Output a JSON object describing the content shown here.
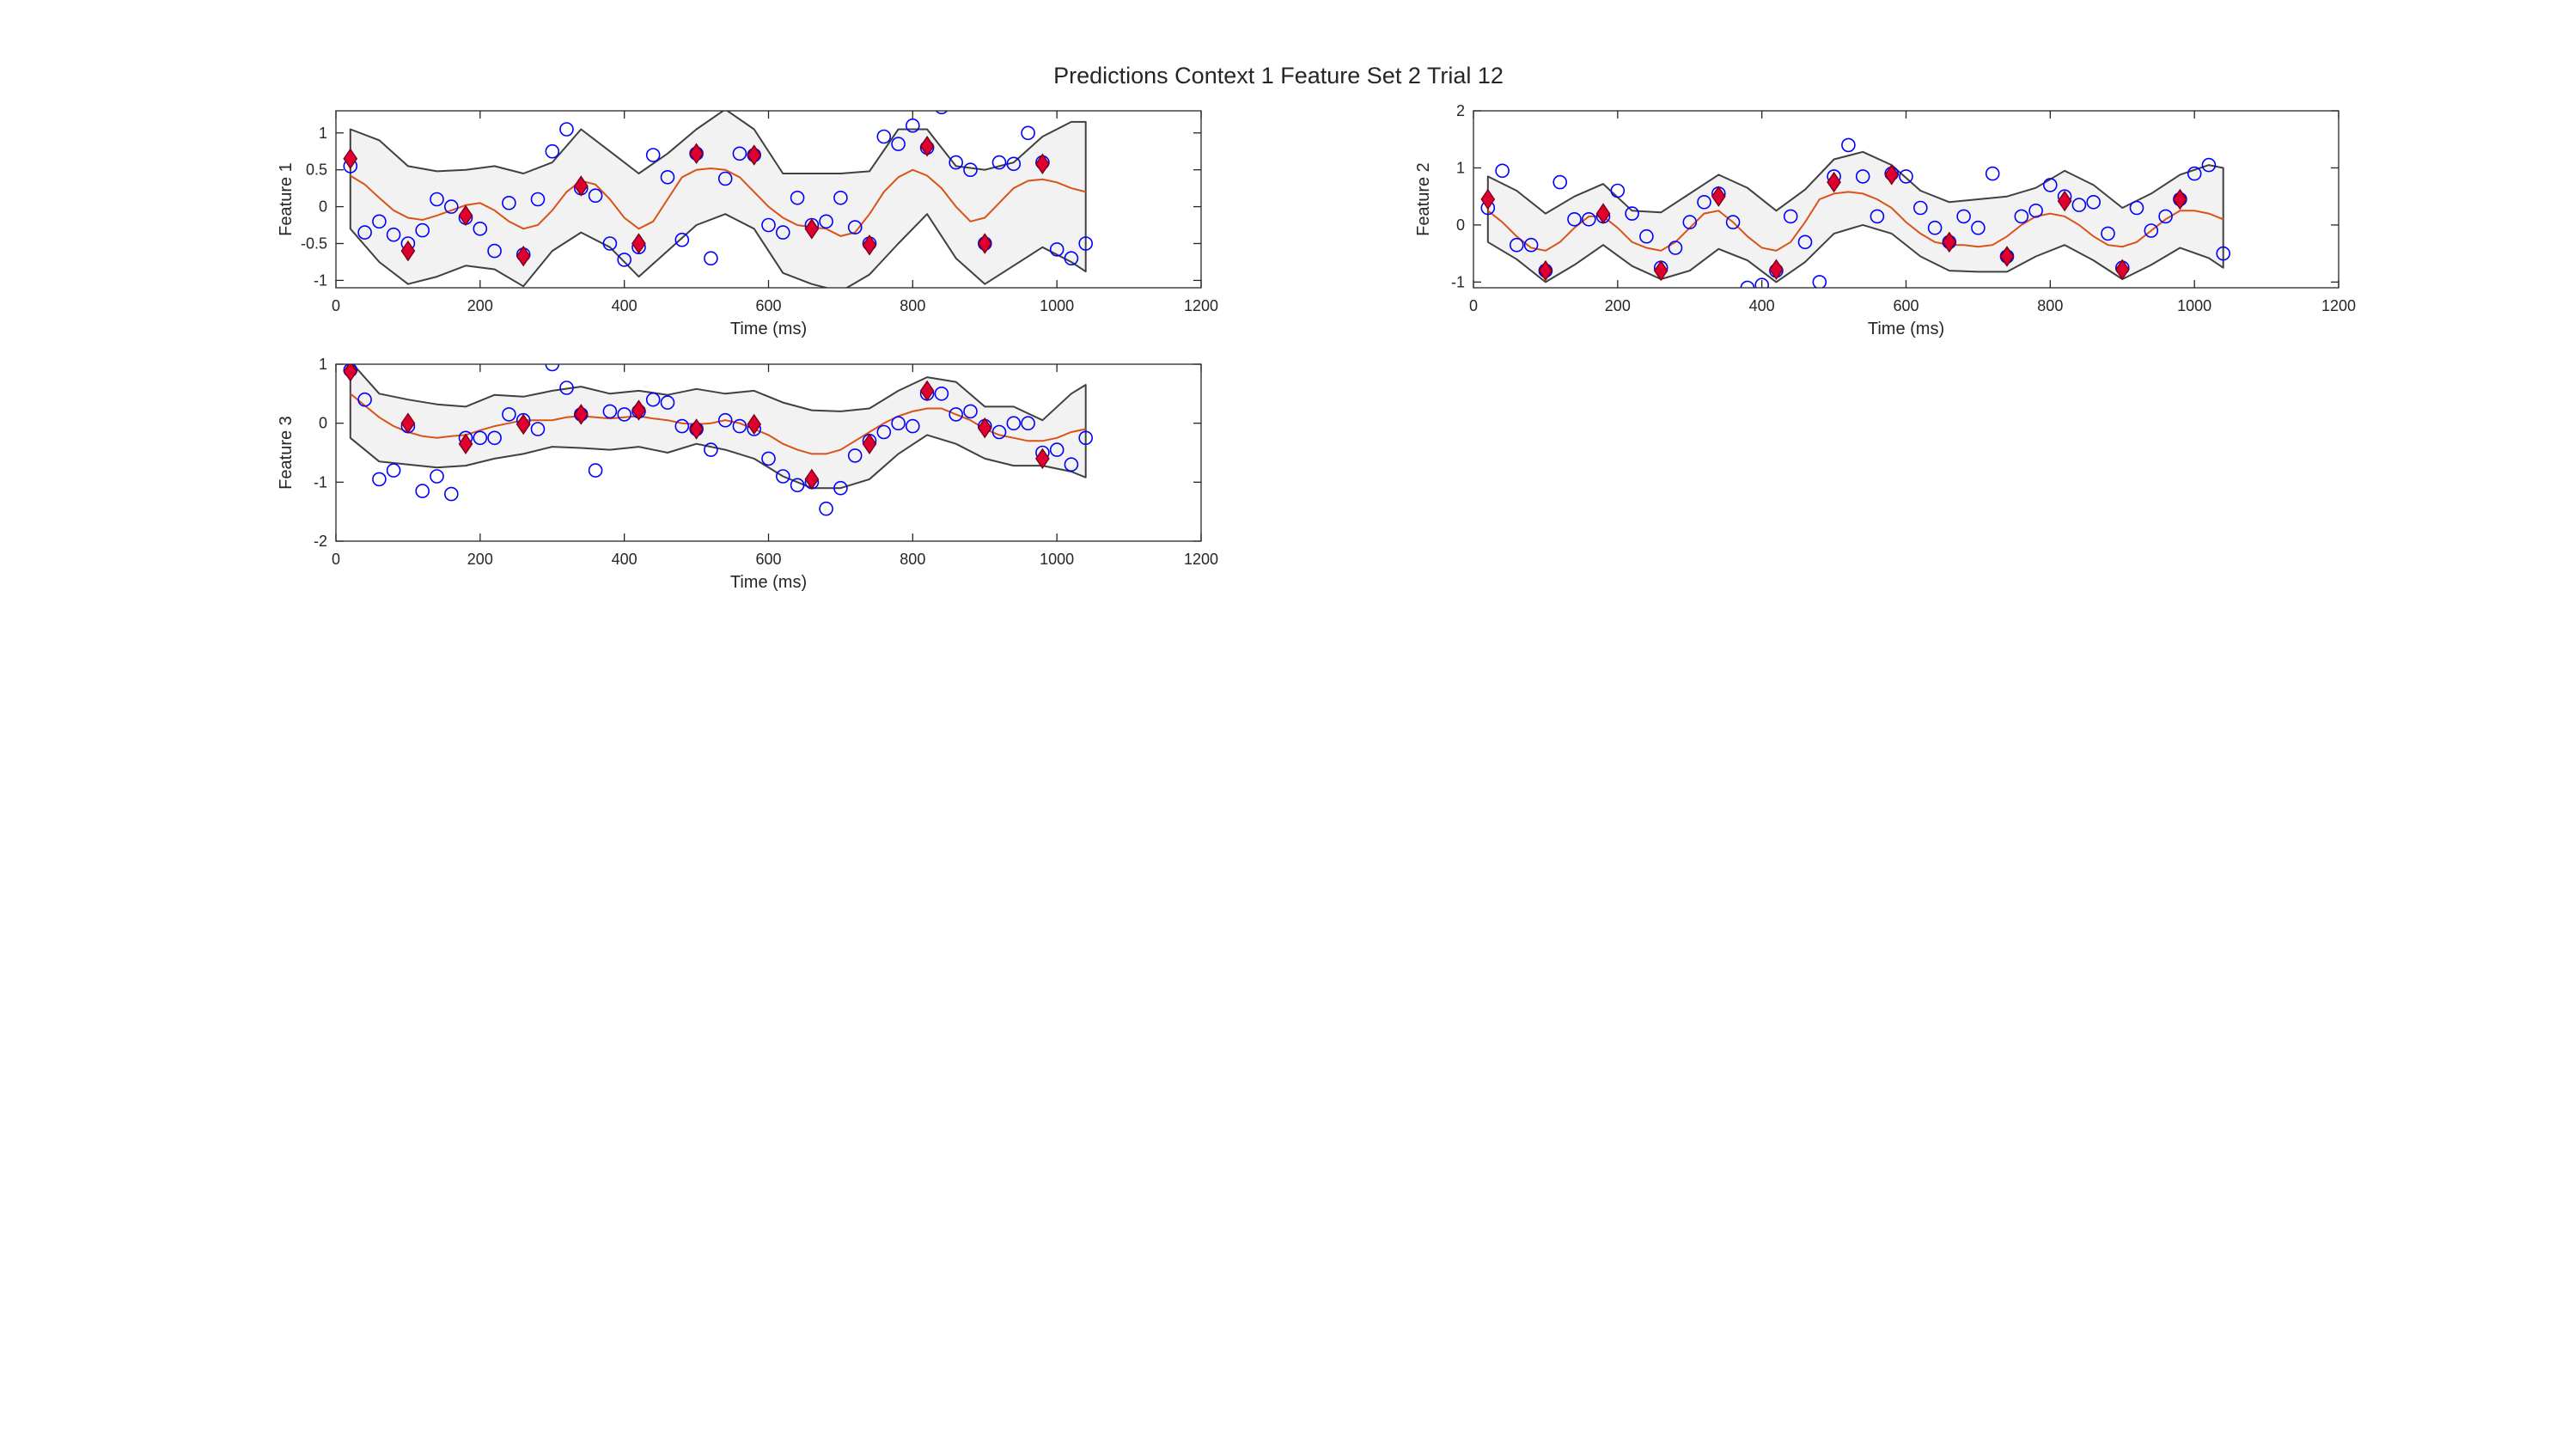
{
  "figure": {
    "title": "Predictions Context 1 Feature Set 2 Trial 12"
  },
  "chart_data": [
    {
      "type": "line",
      "ylabel": "Feature 1",
      "xlabel": "Time (ms)",
      "xlim": [
        0,
        1200
      ],
      "ylim": [
        -1.1,
        1.3
      ],
      "xticks": [
        0,
        200,
        400,
        600,
        800,
        1000,
        1200
      ],
      "yticks": [
        -1,
        -0.5,
        0,
        0.5,
        1
      ],
      "ytick_labels": [
        "-1",
        "-0.5",
        "0",
        "0.5",
        "1"
      ],
      "grid": false,
      "band": {
        "x": [
          20,
          60,
          100,
          140,
          180,
          220,
          260,
          300,
          340,
          380,
          420,
          460,
          500,
          540,
          580,
          620,
          660,
          700,
          740,
          780,
          820,
          860,
          900,
          940,
          980,
          1020,
          1040
        ],
        "upper": [
          1.05,
          0.9,
          0.55,
          0.48,
          0.5,
          0.55,
          0.45,
          0.6,
          1.05,
          0.75,
          0.45,
          0.72,
          1.05,
          1.32,
          1.05,
          0.45,
          0.45,
          0.45,
          0.48,
          1.05,
          1.05,
          0.55,
          0.5,
          0.6,
          0.95,
          1.15,
          1.15
        ],
        "lower": [
          -0.3,
          -0.75,
          -1.05,
          -0.95,
          -0.8,
          -0.85,
          -1.08,
          -0.6,
          -0.35,
          -0.55,
          -0.95,
          -0.6,
          -0.25,
          -0.1,
          -0.3,
          -0.9,
          -1.05,
          -1.15,
          -0.92,
          -0.5,
          -0.1,
          -0.7,
          -1.05,
          -0.8,
          -0.55,
          -0.75,
          -0.88
        ]
      },
      "mean": {
        "name": "",
        "x": [
          20,
          40,
          60,
          80,
          100,
          120,
          140,
          160,
          180,
          200,
          220,
          240,
          260,
          280,
          300,
          320,
          340,
          360,
          380,
          400,
          420,
          440,
          460,
          480,
          500,
          520,
          540,
          560,
          580,
          600,
          620,
          640,
          660,
          680,
          700,
          720,
          740,
          760,
          780,
          800,
          820,
          840,
          860,
          880,
          900,
          920,
          940,
          960,
          980,
          1000,
          1020,
          1040
        ],
        "y": [
          0.42,
          0.3,
          0.12,
          -0.05,
          -0.15,
          -0.18,
          -0.12,
          -0.05,
          0.02,
          0.05,
          -0.05,
          -0.2,
          -0.3,
          -0.25,
          -0.05,
          0.2,
          0.35,
          0.3,
          0.1,
          -0.15,
          -0.3,
          -0.2,
          0.1,
          0.4,
          0.5,
          0.52,
          0.5,
          0.4,
          0.2,
          0.0,
          -0.15,
          -0.25,
          -0.28,
          -0.3,
          -0.4,
          -0.35,
          -0.1,
          0.2,
          0.4,
          0.5,
          0.42,
          0.25,
          0.0,
          -0.2,
          -0.15,
          0.05,
          0.25,
          0.35,
          0.37,
          0.33,
          0.25,
          0.2
        ]
      },
      "observations": {
        "x": [
          20,
          40,
          60,
          80,
          100,
          120,
          140,
          160,
          180,
          200,
          220,
          240,
          260,
          280,
          300,
          320,
          340,
          360,
          380,
          400,
          420,
          440,
          460,
          480,
          500,
          520,
          540,
          560,
          580,
          600,
          620,
          640,
          660,
          680,
          700,
          720,
          740,
          760,
          780,
          800,
          820,
          840,
          860,
          880,
          900,
          920,
          940,
          960,
          980,
          1000,
          1020,
          1040
        ],
        "y": [
          0.55,
          -0.35,
          -0.2,
          -0.38,
          -0.5,
          -0.32,
          0.1,
          0.0,
          -0.15,
          -0.3,
          -0.6,
          0.05,
          -0.65,
          0.1,
          0.75,
          1.05,
          0.25,
          0.15,
          -0.5,
          -0.72,
          -0.55,
          0.7,
          0.4,
          -0.45,
          0.72,
          -0.7,
          0.38,
          0.72,
          0.7,
          -0.25,
          -0.35,
          0.12,
          -0.25,
          -0.2,
          0.12,
          -0.28,
          -0.5,
          0.95,
          0.85,
          1.1,
          0.8,
          1.35,
          0.6,
          0.5,
          -0.5,
          0.6,
          0.58,
          1.0,
          0.6,
          -0.58,
          -0.7,
          -0.5
        ]
      },
      "predictions": {
        "x": [
          20,
          100,
          180,
          260,
          340,
          420,
          500,
          580,
          660,
          740,
          820,
          900,
          980
        ],
        "y": [
          0.65,
          -0.6,
          -0.12,
          -0.67,
          0.28,
          -0.5,
          0.72,
          0.7,
          -0.3,
          -0.52,
          0.82,
          -0.5,
          0.58
        ]
      }
    },
    {
      "type": "line",
      "ylabel": "Feature 2",
      "xlabel": "Time (ms)",
      "xlim": [
        0,
        1200
      ],
      "ylim": [
        -1.1,
        2
      ],
      "xticks": [
        0,
        200,
        400,
        600,
        800,
        1000,
        1200
      ],
      "yticks": [
        -1,
        0,
        1,
        2
      ],
      "ytick_labels": [
        "-1",
        "0",
        "1",
        "2"
      ],
      "grid": false,
      "band": {
        "x": [
          20,
          60,
          100,
          140,
          180,
          220,
          260,
          300,
          340,
          380,
          420,
          460,
          500,
          540,
          580,
          620,
          660,
          700,
          740,
          780,
          820,
          860,
          900,
          940,
          980,
          1020,
          1040
        ],
        "upper": [
          0.85,
          0.6,
          0.2,
          0.5,
          0.72,
          0.25,
          0.22,
          0.55,
          0.88,
          0.65,
          0.25,
          0.62,
          1.15,
          1.28,
          1.05,
          0.6,
          0.4,
          0.45,
          0.5,
          0.65,
          0.95,
          0.7,
          0.3,
          0.55,
          0.88,
          1.05,
          1.0
        ],
        "lower": [
          -0.3,
          -0.6,
          -1.0,
          -0.7,
          -0.35,
          -0.72,
          -0.95,
          -0.8,
          -0.42,
          -0.62,
          -1.0,
          -0.65,
          -0.15,
          0.0,
          -0.15,
          -0.55,
          -0.8,
          -0.82,
          -0.82,
          -0.55,
          -0.35,
          -0.62,
          -0.95,
          -0.7,
          -0.4,
          -0.58,
          -0.75
        ]
      },
      "mean": {
        "name": "",
        "x": [
          20,
          40,
          60,
          80,
          100,
          120,
          140,
          160,
          180,
          200,
          220,
          240,
          260,
          280,
          300,
          320,
          340,
          360,
          380,
          400,
          420,
          440,
          460,
          480,
          500,
          520,
          540,
          560,
          580,
          600,
          620,
          640,
          660,
          680,
          700,
          720,
          740,
          760,
          780,
          800,
          820,
          840,
          860,
          880,
          900,
          920,
          940,
          960,
          980,
          1000,
          1020,
          1040
        ],
        "y": [
          0.25,
          0.05,
          -0.2,
          -0.4,
          -0.45,
          -0.3,
          -0.05,
          0.15,
          0.15,
          -0.05,
          -0.3,
          -0.4,
          -0.45,
          -0.3,
          -0.05,
          0.2,
          0.25,
          0.05,
          -0.2,
          -0.4,
          -0.45,
          -0.3,
          0.05,
          0.45,
          0.55,
          0.58,
          0.55,
          0.45,
          0.3,
          0.05,
          -0.15,
          -0.3,
          -0.35,
          -0.35,
          -0.38,
          -0.35,
          -0.2,
          0.0,
          0.15,
          0.2,
          0.15,
          0.0,
          -0.2,
          -0.35,
          -0.38,
          -0.3,
          -0.1,
          0.1,
          0.25,
          0.25,
          0.2,
          0.1
        ]
      },
      "observations": {
        "x": [
          20,
          40,
          60,
          80,
          100,
          120,
          140,
          160,
          180,
          200,
          220,
          240,
          260,
          280,
          300,
          320,
          340,
          360,
          380,
          400,
          420,
          440,
          460,
          480,
          500,
          520,
          540,
          560,
          580,
          600,
          620,
          640,
          660,
          680,
          700,
          720,
          740,
          760,
          780,
          800,
          820,
          840,
          860,
          880,
          900,
          920,
          940,
          960,
          980,
          1000,
          1020,
          1040
        ],
        "y": [
          0.3,
          0.95,
          -0.35,
          -0.35,
          -0.8,
          0.75,
          0.1,
          0.1,
          0.15,
          0.6,
          0.2,
          -0.2,
          -0.75,
          -0.4,
          0.05,
          0.4,
          0.55,
          0.05,
          -1.1,
          -1.05,
          -0.8,
          0.15,
          -0.3,
          -1.0,
          0.85,
          1.4,
          0.85,
          0.15,
          0.9,
          0.85,
          0.3,
          -0.05,
          -0.3,
          0.15,
          -0.05,
          0.9,
          -0.55,
          0.15,
          0.25,
          0.7,
          0.5,
          0.35,
          0.4,
          -0.15,
          -0.75,
          0.3,
          -0.1,
          0.15,
          0.45,
          0.9,
          1.05,
          -0.5
        ]
      },
      "predictions": {
        "x": [
          20,
          100,
          180,
          260,
          340,
          420,
          500,
          580,
          660,
          740,
          820,
          900,
          980
        ],
        "y": [
          0.45,
          -0.8,
          0.2,
          -0.8,
          0.5,
          -0.78,
          0.75,
          0.88,
          -0.3,
          -0.55,
          0.42,
          -0.78,
          0.45
        ]
      }
    },
    {
      "type": "line",
      "ylabel": "Feature 3",
      "xlabel": "Time (ms)",
      "xlim": [
        0,
        1200
      ],
      "ylim": [
        -2,
        1
      ],
      "xticks": [
        0,
        200,
        400,
        600,
        800,
        1000,
        1200
      ],
      "yticks": [
        -2,
        -1,
        0,
        1
      ],
      "ytick_labels": [
        "-2",
        "-1",
        "0",
        "1"
      ],
      "grid": false,
      "band": {
        "x": [
          20,
          60,
          100,
          140,
          180,
          220,
          260,
          300,
          340,
          380,
          420,
          460,
          500,
          540,
          580,
          620,
          660,
          700,
          740,
          780,
          820,
          860,
          900,
          940,
          980,
          1020,
          1040
        ],
        "upper": [
          1.05,
          0.5,
          0.4,
          0.32,
          0.28,
          0.48,
          0.45,
          0.55,
          0.62,
          0.5,
          0.55,
          0.48,
          0.58,
          0.5,
          0.55,
          0.35,
          0.22,
          0.2,
          0.25,
          0.55,
          0.78,
          0.7,
          0.28,
          0.28,
          0.05,
          0.5,
          0.65
        ],
        "lower": [
          -0.25,
          -0.65,
          -0.7,
          -0.75,
          -0.72,
          -0.6,
          -0.52,
          -0.4,
          -0.42,
          -0.45,
          -0.4,
          -0.5,
          -0.35,
          -0.45,
          -0.6,
          -0.9,
          -1.1,
          -1.1,
          -0.95,
          -0.52,
          -0.2,
          -0.35,
          -0.6,
          -0.72,
          -0.72,
          -0.82,
          -0.92
        ]
      },
      "mean": {
        "name": "",
        "x": [
          20,
          40,
          60,
          80,
          100,
          120,
          140,
          160,
          180,
          200,
          220,
          240,
          260,
          280,
          300,
          320,
          340,
          360,
          380,
          400,
          420,
          440,
          460,
          480,
          500,
          520,
          540,
          560,
          580,
          600,
          620,
          640,
          660,
          680,
          700,
          720,
          740,
          760,
          780,
          800,
          820,
          840,
          860,
          880,
          900,
          920,
          940,
          960,
          980,
          1000,
          1020,
          1040
        ],
        "y": [
          0.5,
          0.3,
          0.1,
          -0.05,
          -0.15,
          -0.22,
          -0.25,
          -0.22,
          -0.2,
          -0.12,
          -0.05,
          0.0,
          0.05,
          0.05,
          0.05,
          0.1,
          0.12,
          0.1,
          0.08,
          0.1,
          0.12,
          0.08,
          0.05,
          0.0,
          -0.02,
          0.0,
          0.05,
          0.0,
          -0.1,
          -0.2,
          -0.35,
          -0.45,
          -0.52,
          -0.52,
          -0.45,
          -0.3,
          -0.15,
          0.0,
          0.12,
          0.2,
          0.25,
          0.25,
          0.15,
          0.05,
          -0.1,
          -0.2,
          -0.25,
          -0.3,
          -0.3,
          -0.25,
          -0.15,
          -0.1
        ]
      },
      "observations": {
        "x": [
          20,
          40,
          60,
          80,
          100,
          120,
          140,
          160,
          180,
          200,
          220,
          240,
          260,
          280,
          300,
          320,
          340,
          360,
          380,
          400,
          420,
          440,
          460,
          480,
          500,
          520,
          540,
          560,
          580,
          600,
          620,
          640,
          660,
          680,
          700,
          720,
          740,
          760,
          780,
          800,
          820,
          840,
          860,
          880,
          900,
          920,
          940,
          960,
          980,
          1000,
          1020,
          1040
        ],
        "y": [
          0.9,
          0.4,
          -0.95,
          -0.8,
          -0.05,
          -1.15,
          -0.9,
          -1.2,
          -0.25,
          -0.25,
          -0.25,
          0.15,
          0.05,
          -0.1,
          1.0,
          0.6,
          0.15,
          -0.8,
          0.2,
          0.15,
          0.2,
          0.4,
          0.35,
          -0.05,
          -0.1,
          -0.45,
          0.05,
          -0.05,
          -0.1,
          -0.6,
          -0.9,
          -1.05,
          -1.0,
          -1.45,
          -1.1,
          -0.55,
          -0.3,
          -0.15,
          0.0,
          -0.05,
          0.5,
          0.5,
          0.15,
          0.2,
          -0.05,
          -0.15,
          0.0,
          0.0,
          -0.5,
          -0.45,
          -0.7,
          -0.25
        ]
      },
      "predictions": {
        "x": [
          20,
          100,
          180,
          260,
          340,
          420,
          500,
          580,
          660,
          740,
          820,
          900,
          980
        ],
        "y": [
          0.88,
          0.0,
          -0.35,
          -0.02,
          0.15,
          0.22,
          -0.1,
          -0.02,
          -0.95,
          -0.35,
          0.55,
          -0.08,
          -0.6
        ]
      }
    }
  ],
  "colors": {
    "band_fill": "#f2f2f2",
    "band_edge": "#404040",
    "mean_line": "#d95319",
    "observation": "#0000ff",
    "prediction_fill": "#e00030",
    "prediction_edge": "#7a0018",
    "axis": "#262626"
  }
}
